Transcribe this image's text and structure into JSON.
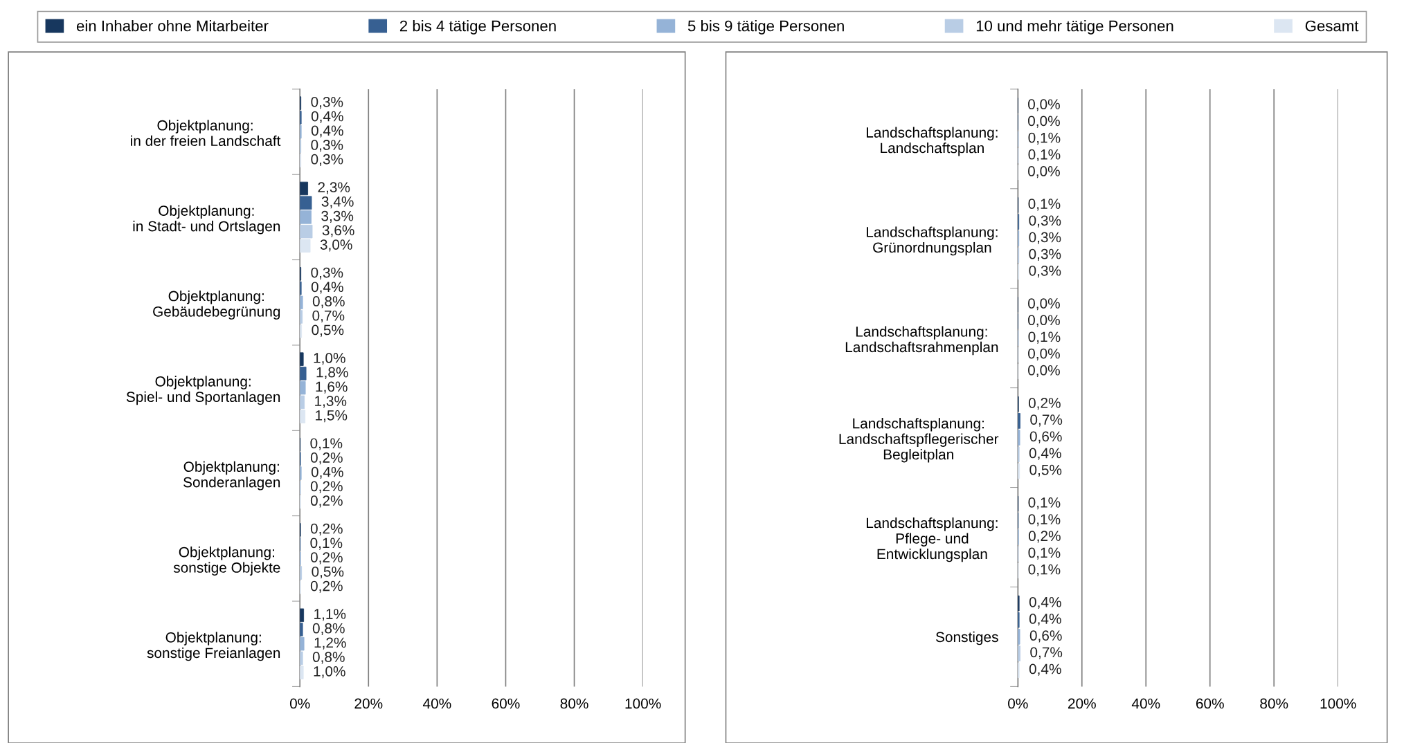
{
  "chart_data": [
    {
      "type": "bar",
      "orientation": "horizontal",
      "legend": "top",
      "grid": "x",
      "categories": [
        "Objektplanung:\nin der freien Landschaft",
        "Objektplanung:\nin Stadt- und Ortslagen",
        "Objektplanung:\nGebäudebegrünung",
        "Objektplanung:\nSpiel- und Sportanlagen",
        "Objektplanung:\nSonderanlagen",
        "Objektplanung:\nsonstige Objekte",
        "Objektplanung:\nsonstige Freianlagen"
      ],
      "xlim": [
        0,
        100
      ],
      "xticks": [
        {
          "value": 0,
          "label": "0%"
        },
        {
          "value": 20,
          "label": "20%"
        },
        {
          "value": 40,
          "label": "40%"
        },
        {
          "value": 60,
          "label": "60%"
        },
        {
          "value": 80,
          "label": "80%"
        },
        {
          "value": 100,
          "label": "100%"
        }
      ],
      "series": [
        {
          "name": "ein Inhaber ohne Mitarbeiter",
          "color": "#17375e",
          "values": [
            0.3,
            2.3,
            0.3,
            1.0,
            0.1,
            0.2,
            1.1
          ],
          "value_labels": [
            "0,3%",
            "2,3%",
            "0,3%",
            "1,0%",
            "0,1%",
            "0,2%",
            "1,1%"
          ]
        },
        {
          "name": "2 bis 4 tätige Personen",
          "color": "#376092",
          "values": [
            0.4,
            3.4,
            0.4,
            1.8,
            0.2,
            0.1,
            0.8
          ],
          "value_labels": [
            "0,4%",
            "3,4%",
            "0,4%",
            "1,8%",
            "0,2%",
            "0,1%",
            "0,8%"
          ]
        },
        {
          "name": "5 bis 9 tätige Personen",
          "color": "#95b3d7",
          "values": [
            0.4,
            3.3,
            0.8,
            1.6,
            0.4,
            0.2,
            1.2
          ],
          "value_labels": [
            "0,4%",
            "3,3%",
            "0,8%",
            "1,6%",
            "0,4%",
            "0,2%",
            "1,2%"
          ]
        },
        {
          "name": "10 und mehr tätige Personen",
          "color": "#b9cde5",
          "values": [
            0.3,
            3.6,
            0.7,
            1.3,
            0.2,
            0.5,
            0.8
          ],
          "value_labels": [
            "0,3%",
            "3,6%",
            "0,7%",
            "1,3%",
            "0,2%",
            "0,5%",
            "0,8%"
          ]
        },
        {
          "name": "Gesamt",
          "color": "#dce6f2",
          "values": [
            0.3,
            3.0,
            0.5,
            1.5,
            0.2,
            0.2,
            1.0
          ],
          "value_labels": [
            "0,3%",
            "3,0%",
            "0,5%",
            "1,5%",
            "0,2%",
            "0,2%",
            "1,0%"
          ]
        }
      ]
    },
    {
      "type": "bar",
      "orientation": "horizontal",
      "grid": "x",
      "categories": [
        "Landschaftsplanung:\nLandschaftsplan",
        "Landschaftsplanung:\nGrünordnungsplan",
        "Landschaftsplanung:\nLandschaftsrahmenplan",
        "Landschaftsplanung:\nLandschaftspflegerischer\nBegleitplan",
        "Landschaftsplanung:\nPflege- und\nEntwicklungsplan",
        "Sonstiges"
      ],
      "xlim": [
        0,
        100
      ],
      "xticks": [
        {
          "value": 0,
          "label": "0%"
        },
        {
          "value": 20,
          "label": "20%"
        },
        {
          "value": 40,
          "label": "40%"
        },
        {
          "value": 60,
          "label": "60%"
        },
        {
          "value": 80,
          "label": "80%"
        },
        {
          "value": 100,
          "label": "100%"
        }
      ],
      "series": [
        {
          "color": "#17375e",
          "values": [
            0.0,
            0.1,
            0.0,
            0.2,
            0.1,
            0.4
          ],
          "value_labels": [
            "0,0%",
            "0,1%",
            "0,0%",
            "0,2%",
            "0,1%",
            "0,4%"
          ]
        },
        {
          "color": "#376092",
          "values": [
            0.0,
            0.3,
            0.0,
            0.7,
            0.1,
            0.4
          ],
          "value_labels": [
            "0,0%",
            "0,3%",
            "0,0%",
            "0,7%",
            "0,1%",
            "0,4%"
          ]
        },
        {
          "color": "#95b3d7",
          "values": [
            0.1,
            0.3,
            0.1,
            0.6,
            0.2,
            0.6
          ],
          "value_labels": [
            "0,1%",
            "0,3%",
            "0,1%",
            "0,6%",
            "0,2%",
            "0,6%"
          ]
        },
        {
          "color": "#b9cde5",
          "values": [
            0.1,
            0.3,
            0.0,
            0.4,
            0.1,
            0.7
          ],
          "value_labels": [
            "0,1%",
            "0,3%",
            "0,0%",
            "0,4%",
            "0,1%",
            "0,7%"
          ]
        },
        {
          "color": "#dce6f2",
          "values": [
            0.0,
            0.3,
            0.0,
            0.5,
            0.1,
            0.4
          ],
          "value_labels": [
            "0,0%",
            "0,3%",
            "0,0%",
            "0,5%",
            "0,1%",
            "0,4%"
          ]
        }
      ]
    }
  ]
}
